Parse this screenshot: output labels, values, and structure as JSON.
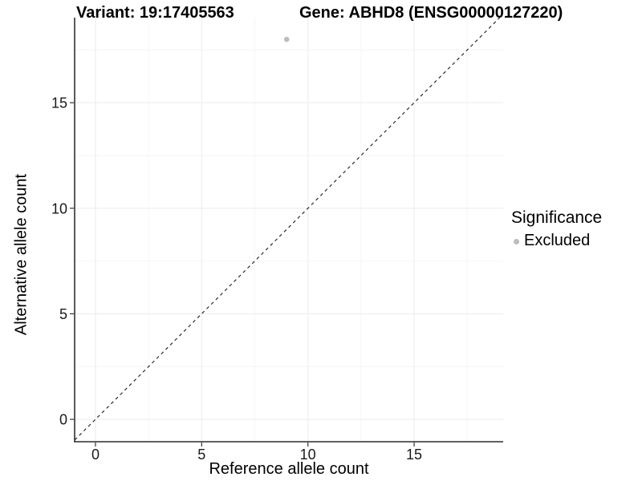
{
  "chart_data": {
    "type": "scatter",
    "titles": {
      "variant": "Variant: 19:17405563",
      "gene": "Gene: ABHD8 (ENSG00000127220)"
    },
    "xlabel": "Reference allele count",
    "ylabel": "Alternative allele count",
    "xlim": [
      -0.98,
      19.19
    ],
    "ylim": [
      -1.06,
      19.03
    ],
    "xticks": [
      0,
      5,
      10,
      15
    ],
    "yticks": [
      0,
      5,
      10,
      15
    ],
    "minor_xticks": [
      2.5,
      7.5,
      12.5,
      17.5
    ],
    "minor_yticks": [
      2.5,
      7.5,
      12.5,
      17.5
    ],
    "grid": true,
    "points": [
      {
        "x": 9,
        "y": 18,
        "series": "Excluded"
      }
    ],
    "reference_line": {
      "slope": 1,
      "intercept": 0,
      "style": "dashed"
    },
    "legend": {
      "title": "Significance",
      "position": "right",
      "entries": [
        {
          "label": "Excluded",
          "color": "#bdbdbd"
        }
      ]
    },
    "colors": {
      "point": "#bdbdbd",
      "axis_line": "#000000",
      "tick": "#333333",
      "tick_label": "#1a1a1a",
      "grid_major": "#ededed",
      "grid_minor": "#f6f6f6",
      "reference_line": "#1a1a1a"
    }
  }
}
